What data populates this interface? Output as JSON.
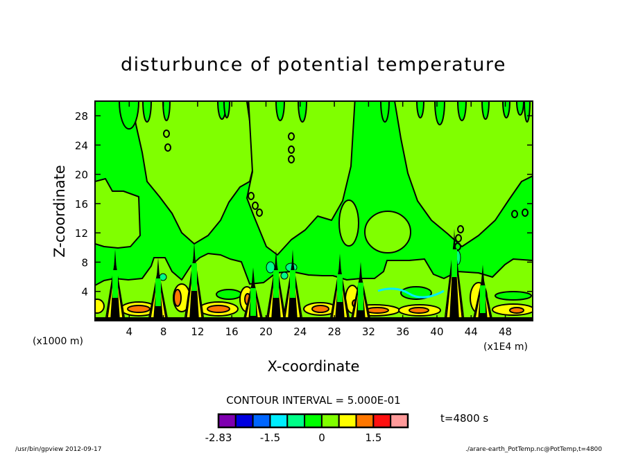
{
  "chart_data": {
    "type": "heatmap",
    "subtype": "filled-contour",
    "title": "disturbunce of potential temperature",
    "xlabel": "X-coordinate",
    "ylabel": "Z-coordinate",
    "x_unit": "(x1E4 m)",
    "y_unit": "(x1000 m)",
    "xlim": [
      0,
      51.2
    ],
    "ylim": [
      0,
      30
    ],
    "x_ticks": [
      "4",
      "8",
      "12",
      "16",
      "20",
      "24",
      "28",
      "32",
      "36",
      "40",
      "44",
      "48"
    ],
    "y_ticks": [
      "4",
      "8",
      "12",
      "16",
      "20",
      "24",
      "28"
    ],
    "contour_interval_label": "CONTOUR INTERVAL = 5.000E-01",
    "contour_interval": 0.5,
    "time_label": "t=4800 s",
    "colorbar": {
      "colors": [
        "#7f00b0",
        "#0000e0",
        "#0066ff",
        "#00eeff",
        "#00ff88",
        "#00ff00",
        "#80ff00",
        "#ffff00",
        "#ff7700",
        "#ff1111",
        "#ff9a9a"
      ],
      "labels": [
        {
          "text": "-2.83",
          "value": -2.83
        },
        {
          "text": "-1.5",
          "value": -1.5
        },
        {
          "text": "0",
          "value": 0
        },
        {
          "text": "1.5",
          "value": 1.5
        }
      ]
    },
    "description_of_field": "Mostly values in the 0 to 0.5 (light green) and -0.5 to 0 (green) ranges; positive anomalies up to ~2 near the surface (z<4) with convective plumes around x=2,7,11,18,21,23,28,31,42,45"
  },
  "footer": {
    "left": "/usr/bin/gpview   2012-09-17",
    "right": "./arare-earth_PotTemp.nc@PotTemp,t=4800"
  }
}
